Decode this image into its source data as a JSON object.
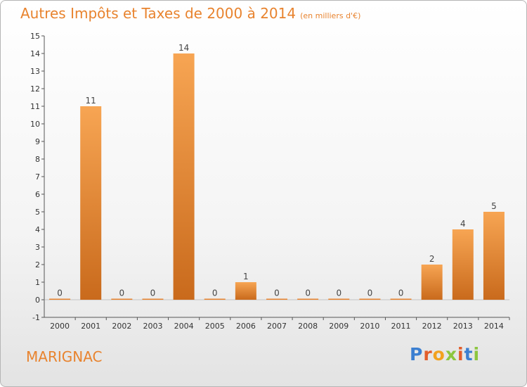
{
  "chart_title": "Autres Impôts et Taxes de 2000 à 2014",
  "chart_unit": "(en milliers d'€)",
  "place": "MARIGNAC",
  "logo": {
    "text": "Proxiti",
    "colors": [
      "#3b7fd1",
      "#e25d2b",
      "#f2a11e",
      "#8cc63f",
      "#e25d2b",
      "#3b7fd1",
      "#8cc63f"
    ]
  },
  "chart_data": {
    "type": "bar",
    "title": "Autres Impôts et Taxes de 2000 à 2014",
    "subtitle": "(en milliers d'€)",
    "categories": [
      "2000",
      "2001",
      "2002",
      "2003",
      "2004",
      "2005",
      "2006",
      "2007",
      "2008",
      "2009",
      "2010",
      "2011",
      "2012",
      "2013",
      "2014"
    ],
    "values": [
      0,
      11,
      0,
      0,
      14,
      0,
      1,
      0,
      0,
      0,
      0,
      0,
      2,
      4,
      5
    ],
    "ylim": [
      -1,
      15
    ],
    "yticks": [
      -1,
      0,
      1,
      2,
      3,
      4,
      5,
      6,
      7,
      8,
      9,
      10,
      11,
      12,
      13,
      14,
      15
    ],
    "grid": false,
    "bar_color": "#e8832e",
    "bar_color_light": "#f7a553",
    "bar_color_dark": "#c96a1c"
  }
}
